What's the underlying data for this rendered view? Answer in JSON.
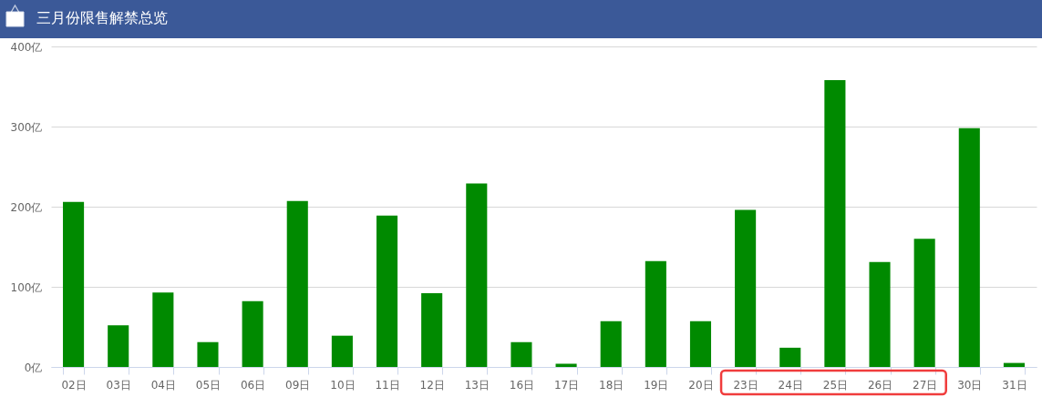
{
  "chart_data": {
    "type": "bar",
    "title": "三月份限售解禁总览",
    "categories": [
      "02日",
      "03日",
      "04日",
      "05日",
      "06日",
      "09日",
      "10日",
      "11日",
      "12日",
      "13日",
      "16日",
      "17日",
      "18日",
      "19日",
      "20日",
      "23日",
      "24日",
      "25日",
      "26日",
      "27日",
      "30日",
      "31日"
    ],
    "values": [
      206,
      52,
      93,
      31,
      82,
      207,
      39,
      189,
      92,
      229,
      31,
      4,
      57,
      132,
      57,
      196,
      24,
      358,
      131,
      160,
      298,
      5
    ],
    "color": "#008a00",
    "ylim": [
      0,
      400
    ],
    "yticks": [
      {
        "value": 0,
        "label": "0亿"
      },
      {
        "value": 100,
        "label": "100亿"
      },
      {
        "value": 200,
        "label": "200亿"
      },
      {
        "value": 300,
        "label": "300亿"
      },
      {
        "value": 400,
        "label": "400亿"
      }
    ],
    "grid": "y"
  }
}
